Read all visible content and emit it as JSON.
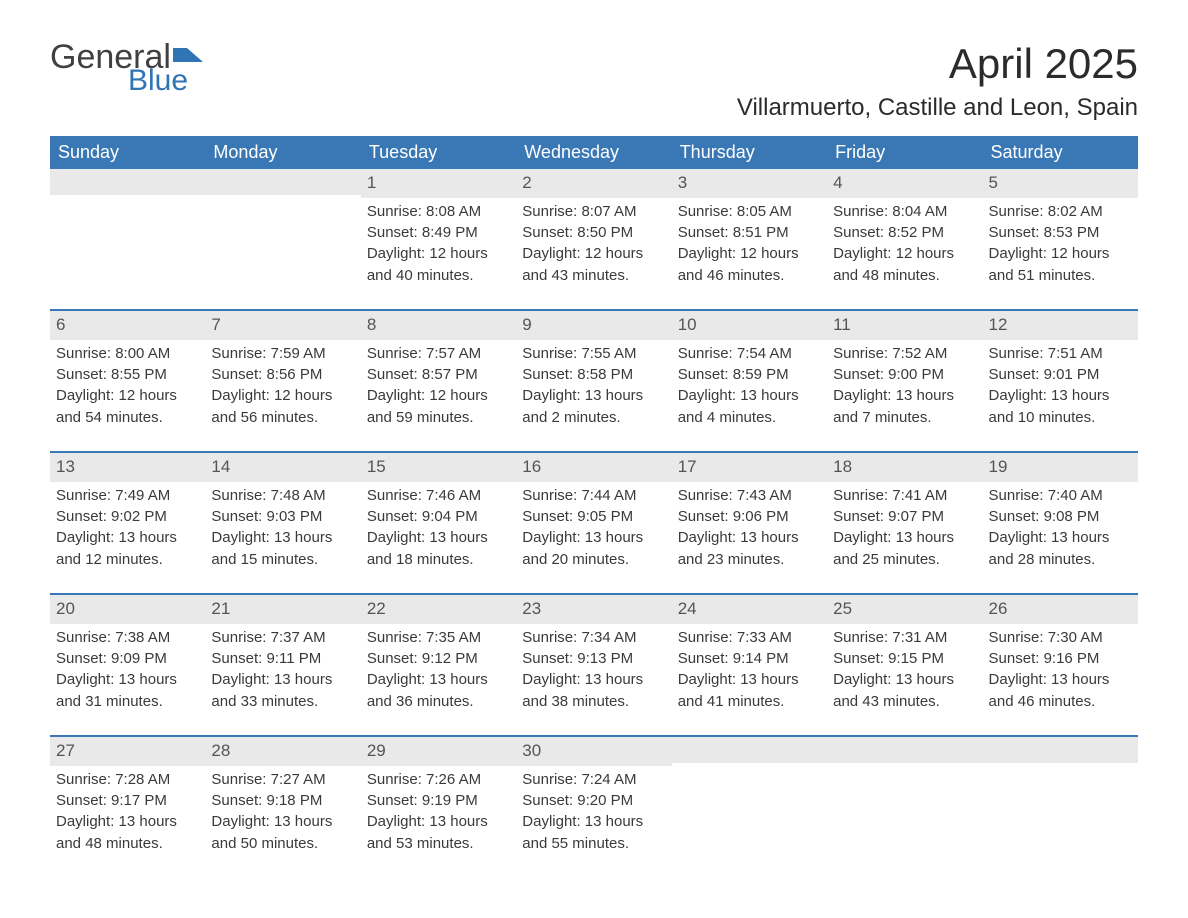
{
  "logo": {
    "text1": "General",
    "text2": "Blue",
    "flag_color": "#2f75b5"
  },
  "title": "April 2025",
  "subtitle": "Villarmuerto, Castille and Leon, Spain",
  "colors": {
    "header_bg": "#3a78b5",
    "header_text": "#ffffff",
    "daynum_bg": "#e9e9e9",
    "week_border": "#3a78b5",
    "body_text": "#3a3a3a"
  },
  "weekdays": [
    "Sunday",
    "Monday",
    "Tuesday",
    "Wednesday",
    "Thursday",
    "Friday",
    "Saturday"
  ],
  "weeks": [
    [
      null,
      null,
      {
        "n": "1",
        "sr": "Sunrise: 8:08 AM",
        "ss": "Sunset: 8:49 PM",
        "d1": "Daylight: 12 hours",
        "d2": "and 40 minutes."
      },
      {
        "n": "2",
        "sr": "Sunrise: 8:07 AM",
        "ss": "Sunset: 8:50 PM",
        "d1": "Daylight: 12 hours",
        "d2": "and 43 minutes."
      },
      {
        "n": "3",
        "sr": "Sunrise: 8:05 AM",
        "ss": "Sunset: 8:51 PM",
        "d1": "Daylight: 12 hours",
        "d2": "and 46 minutes."
      },
      {
        "n": "4",
        "sr": "Sunrise: 8:04 AM",
        "ss": "Sunset: 8:52 PM",
        "d1": "Daylight: 12 hours",
        "d2": "and 48 minutes."
      },
      {
        "n": "5",
        "sr": "Sunrise: 8:02 AM",
        "ss": "Sunset: 8:53 PM",
        "d1": "Daylight: 12 hours",
        "d2": "and 51 minutes."
      }
    ],
    [
      {
        "n": "6",
        "sr": "Sunrise: 8:00 AM",
        "ss": "Sunset: 8:55 PM",
        "d1": "Daylight: 12 hours",
        "d2": "and 54 minutes."
      },
      {
        "n": "7",
        "sr": "Sunrise: 7:59 AM",
        "ss": "Sunset: 8:56 PM",
        "d1": "Daylight: 12 hours",
        "d2": "and 56 minutes."
      },
      {
        "n": "8",
        "sr": "Sunrise: 7:57 AM",
        "ss": "Sunset: 8:57 PM",
        "d1": "Daylight: 12 hours",
        "d2": "and 59 minutes."
      },
      {
        "n": "9",
        "sr": "Sunrise: 7:55 AM",
        "ss": "Sunset: 8:58 PM",
        "d1": "Daylight: 13 hours",
        "d2": "and 2 minutes."
      },
      {
        "n": "10",
        "sr": "Sunrise: 7:54 AM",
        "ss": "Sunset: 8:59 PM",
        "d1": "Daylight: 13 hours",
        "d2": "and 4 minutes."
      },
      {
        "n": "11",
        "sr": "Sunrise: 7:52 AM",
        "ss": "Sunset: 9:00 PM",
        "d1": "Daylight: 13 hours",
        "d2": "and 7 minutes."
      },
      {
        "n": "12",
        "sr": "Sunrise: 7:51 AM",
        "ss": "Sunset: 9:01 PM",
        "d1": "Daylight: 13 hours",
        "d2": "and 10 minutes."
      }
    ],
    [
      {
        "n": "13",
        "sr": "Sunrise: 7:49 AM",
        "ss": "Sunset: 9:02 PM",
        "d1": "Daylight: 13 hours",
        "d2": "and 12 minutes."
      },
      {
        "n": "14",
        "sr": "Sunrise: 7:48 AM",
        "ss": "Sunset: 9:03 PM",
        "d1": "Daylight: 13 hours",
        "d2": "and 15 minutes."
      },
      {
        "n": "15",
        "sr": "Sunrise: 7:46 AM",
        "ss": "Sunset: 9:04 PM",
        "d1": "Daylight: 13 hours",
        "d2": "and 18 minutes."
      },
      {
        "n": "16",
        "sr": "Sunrise: 7:44 AM",
        "ss": "Sunset: 9:05 PM",
        "d1": "Daylight: 13 hours",
        "d2": "and 20 minutes."
      },
      {
        "n": "17",
        "sr": "Sunrise: 7:43 AM",
        "ss": "Sunset: 9:06 PM",
        "d1": "Daylight: 13 hours",
        "d2": "and 23 minutes."
      },
      {
        "n": "18",
        "sr": "Sunrise: 7:41 AM",
        "ss": "Sunset: 9:07 PM",
        "d1": "Daylight: 13 hours",
        "d2": "and 25 minutes."
      },
      {
        "n": "19",
        "sr": "Sunrise: 7:40 AM",
        "ss": "Sunset: 9:08 PM",
        "d1": "Daylight: 13 hours",
        "d2": "and 28 minutes."
      }
    ],
    [
      {
        "n": "20",
        "sr": "Sunrise: 7:38 AM",
        "ss": "Sunset: 9:09 PM",
        "d1": "Daylight: 13 hours",
        "d2": "and 31 minutes."
      },
      {
        "n": "21",
        "sr": "Sunrise: 7:37 AM",
        "ss": "Sunset: 9:11 PM",
        "d1": "Daylight: 13 hours",
        "d2": "and 33 minutes."
      },
      {
        "n": "22",
        "sr": "Sunrise: 7:35 AM",
        "ss": "Sunset: 9:12 PM",
        "d1": "Daylight: 13 hours",
        "d2": "and 36 minutes."
      },
      {
        "n": "23",
        "sr": "Sunrise: 7:34 AM",
        "ss": "Sunset: 9:13 PM",
        "d1": "Daylight: 13 hours",
        "d2": "and 38 minutes."
      },
      {
        "n": "24",
        "sr": "Sunrise: 7:33 AM",
        "ss": "Sunset: 9:14 PM",
        "d1": "Daylight: 13 hours",
        "d2": "and 41 minutes."
      },
      {
        "n": "25",
        "sr": "Sunrise: 7:31 AM",
        "ss": "Sunset: 9:15 PM",
        "d1": "Daylight: 13 hours",
        "d2": "and 43 minutes."
      },
      {
        "n": "26",
        "sr": "Sunrise: 7:30 AM",
        "ss": "Sunset: 9:16 PM",
        "d1": "Daylight: 13 hours",
        "d2": "and 46 minutes."
      }
    ],
    [
      {
        "n": "27",
        "sr": "Sunrise: 7:28 AM",
        "ss": "Sunset: 9:17 PM",
        "d1": "Daylight: 13 hours",
        "d2": "and 48 minutes."
      },
      {
        "n": "28",
        "sr": "Sunrise: 7:27 AM",
        "ss": "Sunset: 9:18 PM",
        "d1": "Daylight: 13 hours",
        "d2": "and 50 minutes."
      },
      {
        "n": "29",
        "sr": "Sunrise: 7:26 AM",
        "ss": "Sunset: 9:19 PM",
        "d1": "Daylight: 13 hours",
        "d2": "and 53 minutes."
      },
      {
        "n": "30",
        "sr": "Sunrise: 7:24 AM",
        "ss": "Sunset: 9:20 PM",
        "d1": "Daylight: 13 hours",
        "d2": "and 55 minutes."
      },
      null,
      null,
      null
    ]
  ]
}
